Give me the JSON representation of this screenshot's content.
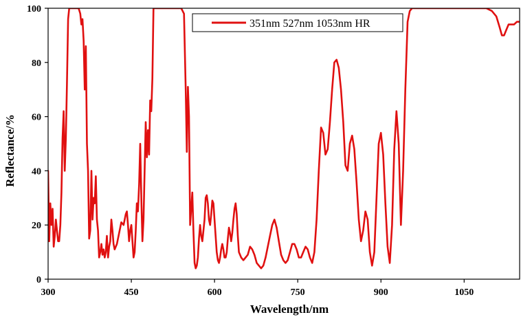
{
  "chart_data": {
    "type": "line",
    "title": "",
    "xlabel": "Wavelength/nm",
    "ylabel": "Reflectance/%",
    "xlim": [
      300,
      1150
    ],
    "ylim": [
      0,
      100
    ],
    "x_ticks": [
      300,
      450,
      600,
      750,
      900,
      1050
    ],
    "y_ticks": [
      0,
      20,
      40,
      60,
      80,
      100
    ],
    "grid": false,
    "legend_position": "top-right",
    "series": [
      {
        "name": "351nm 527nm 1053nm HR",
        "color": "#e01010",
        "points": [
          [
            300,
            40
          ],
          [
            302,
            14
          ],
          [
            304,
            28
          ],
          [
            306,
            20
          ],
          [
            308,
            26
          ],
          [
            310,
            12
          ],
          [
            312,
            16
          ],
          [
            314,
            22
          ],
          [
            316,
            18
          ],
          [
            318,
            14
          ],
          [
            320,
            14
          ],
          [
            322,
            20
          ],
          [
            324,
            32
          ],
          [
            326,
            52
          ],
          [
            328,
            62
          ],
          [
            330,
            40
          ],
          [
            332,
            52
          ],
          [
            334,
            72
          ],
          [
            336,
            96
          ],
          [
            338,
            100
          ],
          [
            340,
            100
          ],
          [
            345,
            100
          ],
          [
            350,
            100
          ],
          [
            355,
            100
          ],
          [
            358,
            98
          ],
          [
            360,
            94
          ],
          [
            362,
            96
          ],
          [
            364,
            88
          ],
          [
            366,
            70
          ],
          [
            368,
            86
          ],
          [
            370,
            50
          ],
          [
            372,
            40
          ],
          [
            374,
            15
          ],
          [
            376,
            18
          ],
          [
            378,
            40
          ],
          [
            380,
            22
          ],
          [
            382,
            30
          ],
          [
            384,
            28
          ],
          [
            386,
            38
          ],
          [
            388,
            22
          ],
          [
            390,
            18
          ],
          [
            392,
            8
          ],
          [
            394,
            10
          ],
          [
            396,
            13
          ],
          [
            398,
            9
          ],
          [
            400,
            11
          ],
          [
            402,
            8
          ],
          [
            404,
            10
          ],
          [
            406,
            16
          ],
          [
            408,
            8
          ],
          [
            410,
            12
          ],
          [
            412,
            14
          ],
          [
            414,
            22
          ],
          [
            416,
            18
          ],
          [
            418,
            13
          ],
          [
            420,
            11
          ],
          [
            424,
            13
          ],
          [
            428,
            17
          ],
          [
            432,
            21
          ],
          [
            436,
            20
          ],
          [
            440,
            24
          ],
          [
            442,
            25
          ],
          [
            444,
            20
          ],
          [
            446,
            14
          ],
          [
            448,
            18
          ],
          [
            450,
            20
          ],
          [
            452,
            14
          ],
          [
            454,
            8
          ],
          [
            456,
            10
          ],
          [
            458,
            18
          ],
          [
            460,
            28
          ],
          [
            462,
            25
          ],
          [
            464,
            35
          ],
          [
            466,
            50
          ],
          [
            468,
            30
          ],
          [
            470,
            14
          ],
          [
            472,
            22
          ],
          [
            474,
            40
          ],
          [
            476,
            58
          ],
          [
            478,
            45
          ],
          [
            480,
            55
          ],
          [
            482,
            46
          ],
          [
            484,
            66
          ],
          [
            486,
            62
          ],
          [
            488,
            74
          ],
          [
            490,
            100
          ],
          [
            495,
            100
          ],
          [
            500,
            100
          ],
          [
            505,
            100
          ],
          [
            510,
            100
          ],
          [
            515,
            100
          ],
          [
            520,
            100
          ],
          [
            525,
            100
          ],
          [
            530,
            100
          ],
          [
            535,
            100
          ],
          [
            540,
            100
          ],
          [
            545,
            98
          ],
          [
            548,
            70
          ],
          [
            550,
            47
          ],
          [
            552,
            71
          ],
          [
            554,
            60
          ],
          [
            556,
            20
          ],
          [
            558,
            26
          ],
          [
            560,
            32
          ],
          [
            562,
            18
          ],
          [
            564,
            6
          ],
          [
            566,
            4
          ],
          [
            568,
            5
          ],
          [
            570,
            8
          ],
          [
            572,
            15
          ],
          [
            574,
            20
          ],
          [
            576,
            16
          ],
          [
            578,
            14
          ],
          [
            580,
            18
          ],
          [
            582,
            22
          ],
          [
            584,
            30
          ],
          [
            586,
            31
          ],
          [
            588,
            28
          ],
          [
            590,
            22
          ],
          [
            592,
            20
          ],
          [
            594,
            24
          ],
          [
            596,
            29
          ],
          [
            598,
            28
          ],
          [
            600,
            22
          ],
          [
            602,
            16
          ],
          [
            604,
            10
          ],
          [
            606,
            7
          ],
          [
            608,
            6
          ],
          [
            610,
            8
          ],
          [
            612,
            11
          ],
          [
            614,
            13
          ],
          [
            616,
            11
          ],
          [
            618,
            8
          ],
          [
            620,
            8
          ],
          [
            622,
            10
          ],
          [
            624,
            15
          ],
          [
            626,
            19
          ],
          [
            628,
            17
          ],
          [
            630,
            14
          ],
          [
            632,
            17
          ],
          [
            634,
            22
          ],
          [
            636,
            26
          ],
          [
            638,
            28
          ],
          [
            640,
            24
          ],
          [
            642,
            16
          ],
          [
            644,
            10
          ],
          [
            648,
            8
          ],
          [
            652,
            7
          ],
          [
            656,
            8
          ],
          [
            660,
            9
          ],
          [
            664,
            12
          ],
          [
            668,
            11
          ],
          [
            672,
            9
          ],
          [
            676,
            6
          ],
          [
            680,
            5
          ],
          [
            684,
            4
          ],
          [
            688,
            5
          ],
          [
            692,
            8
          ],
          [
            696,
            12
          ],
          [
            700,
            16
          ],
          [
            704,
            20
          ],
          [
            708,
            22
          ],
          [
            712,
            19
          ],
          [
            716,
            14
          ],
          [
            720,
            9
          ],
          [
            724,
            7
          ],
          [
            728,
            6
          ],
          [
            732,
            7
          ],
          [
            736,
            10
          ],
          [
            740,
            13
          ],
          [
            744,
            13
          ],
          [
            748,
            11
          ],
          [
            752,
            8
          ],
          [
            756,
            8
          ],
          [
            760,
            10
          ],
          [
            764,
            12
          ],
          [
            768,
            11
          ],
          [
            772,
            8
          ],
          [
            776,
            6
          ],
          [
            780,
            10
          ],
          [
            784,
            22
          ],
          [
            788,
            40
          ],
          [
            792,
            56
          ],
          [
            796,
            54
          ],
          [
            800,
            46
          ],
          [
            804,
            48
          ],
          [
            808,
            58
          ],
          [
            812,
            70
          ],
          [
            816,
            80
          ],
          [
            820,
            81
          ],
          [
            824,
            78
          ],
          [
            828,
            70
          ],
          [
            832,
            58
          ],
          [
            836,
            42
          ],
          [
            840,
            40
          ],
          [
            844,
            50
          ],
          [
            848,
            53
          ],
          [
            852,
            48
          ],
          [
            856,
            36
          ],
          [
            860,
            22
          ],
          [
            864,
            14
          ],
          [
            868,
            18
          ],
          [
            872,
            25
          ],
          [
            876,
            22
          ],
          [
            880,
            10
          ],
          [
            884,
            5
          ],
          [
            888,
            10
          ],
          [
            892,
            30
          ],
          [
            896,
            50
          ],
          [
            900,
            54
          ],
          [
            904,
            46
          ],
          [
            908,
            28
          ],
          [
            912,
            12
          ],
          [
            916,
            6
          ],
          [
            920,
            20
          ],
          [
            924,
            48
          ],
          [
            928,
            62
          ],
          [
            932,
            50
          ],
          [
            936,
            20
          ],
          [
            940,
            40
          ],
          [
            944,
            70
          ],
          [
            948,
            95
          ],
          [
            952,
            99
          ],
          [
            956,
            100
          ],
          [
            960,
            100
          ],
          [
            970,
            100
          ],
          [
            990,
            100
          ],
          [
            1010,
            100
          ],
          [
            1030,
            100
          ],
          [
            1050,
            100
          ],
          [
            1070,
            100
          ],
          [
            1090,
            100
          ],
          [
            1100,
            99
          ],
          [
            1108,
            97
          ],
          [
            1114,
            93
          ],
          [
            1118,
            90
          ],
          [
            1122,
            90
          ],
          [
            1126,
            92
          ],
          [
            1130,
            94
          ],
          [
            1135,
            94
          ],
          [
            1140,
            94
          ],
          [
            1145,
            95
          ],
          [
            1150,
            95
          ]
        ]
      }
    ]
  }
}
